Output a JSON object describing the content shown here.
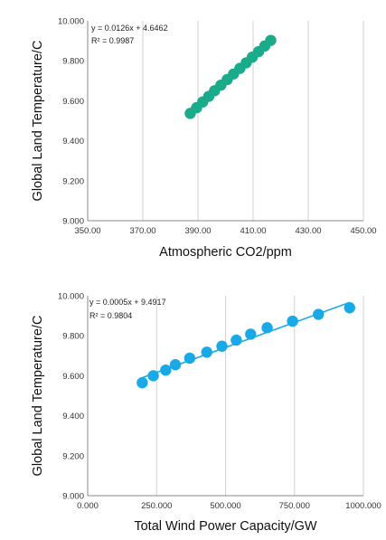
{
  "chart_data": [
    {
      "type": "scatter",
      "xlabel": "Atmospheric CO2/ppm",
      "ylabel": "Global Land Temperature/C",
      "xlim": [
        350,
        450
      ],
      "ylim": [
        9.0,
        10.0
      ],
      "xticks": [
        "350.00",
        "370.00",
        "390.00",
        "410.00",
        "430.00",
        "450.00"
      ],
      "yticks": [
        "9.000",
        "9.200",
        "9.400",
        "9.600",
        "9.800",
        "10.000"
      ],
      "grid": "vertical",
      "color": "#1aab8b",
      "trendline": false,
      "equation": "y = 0.0126x + 4.6462",
      "r2": "R² = 0.9987",
      "series": [
        {
          "x": [
            387.2,
            389.5,
            391.7,
            393.9,
            396.0,
            398.3,
            400.6,
            402.9,
            405.2,
            407.5,
            409.7,
            412.0,
            414.2,
            416.4
          ],
          "y": [
            9.537,
            9.565,
            9.594,
            9.622,
            9.65,
            9.678,
            9.706,
            9.734,
            9.762,
            9.79,
            9.818,
            9.846,
            9.874,
            9.902
          ]
        }
      ]
    },
    {
      "type": "scatter",
      "xlabel": "Total Wind Power Capacity/GW",
      "ylabel": "Global Land Temperature/C",
      "xlim": [
        0,
        1000
      ],
      "ylim": [
        9.0,
        10.0
      ],
      "xticks": [
        "0.000",
        "250.000",
        "500.000",
        "750.000",
        "1000.000"
      ],
      "yticks": [
        "9.000",
        "9.200",
        "9.400",
        "9.600",
        "9.800",
        "10.000"
      ],
      "grid": "vertical",
      "color": "#18a9e6",
      "trendline": true,
      "trend_slope": 0.0005,
      "trend_intercept": 9.4917,
      "equation": "y = 0.0005x + 9.4917",
      "r2": "R² = 0.9804",
      "series": [
        {
          "x": [
            198,
            238,
            283,
            318,
            370,
            432,
            487,
            539,
            591,
            651,
            743,
            837,
            950
          ],
          "y": [
            9.565,
            9.6,
            9.628,
            9.655,
            9.688,
            9.718,
            9.748,
            9.778,
            9.808,
            9.84,
            9.873,
            9.907,
            9.94
          ]
        }
      ]
    }
  ]
}
